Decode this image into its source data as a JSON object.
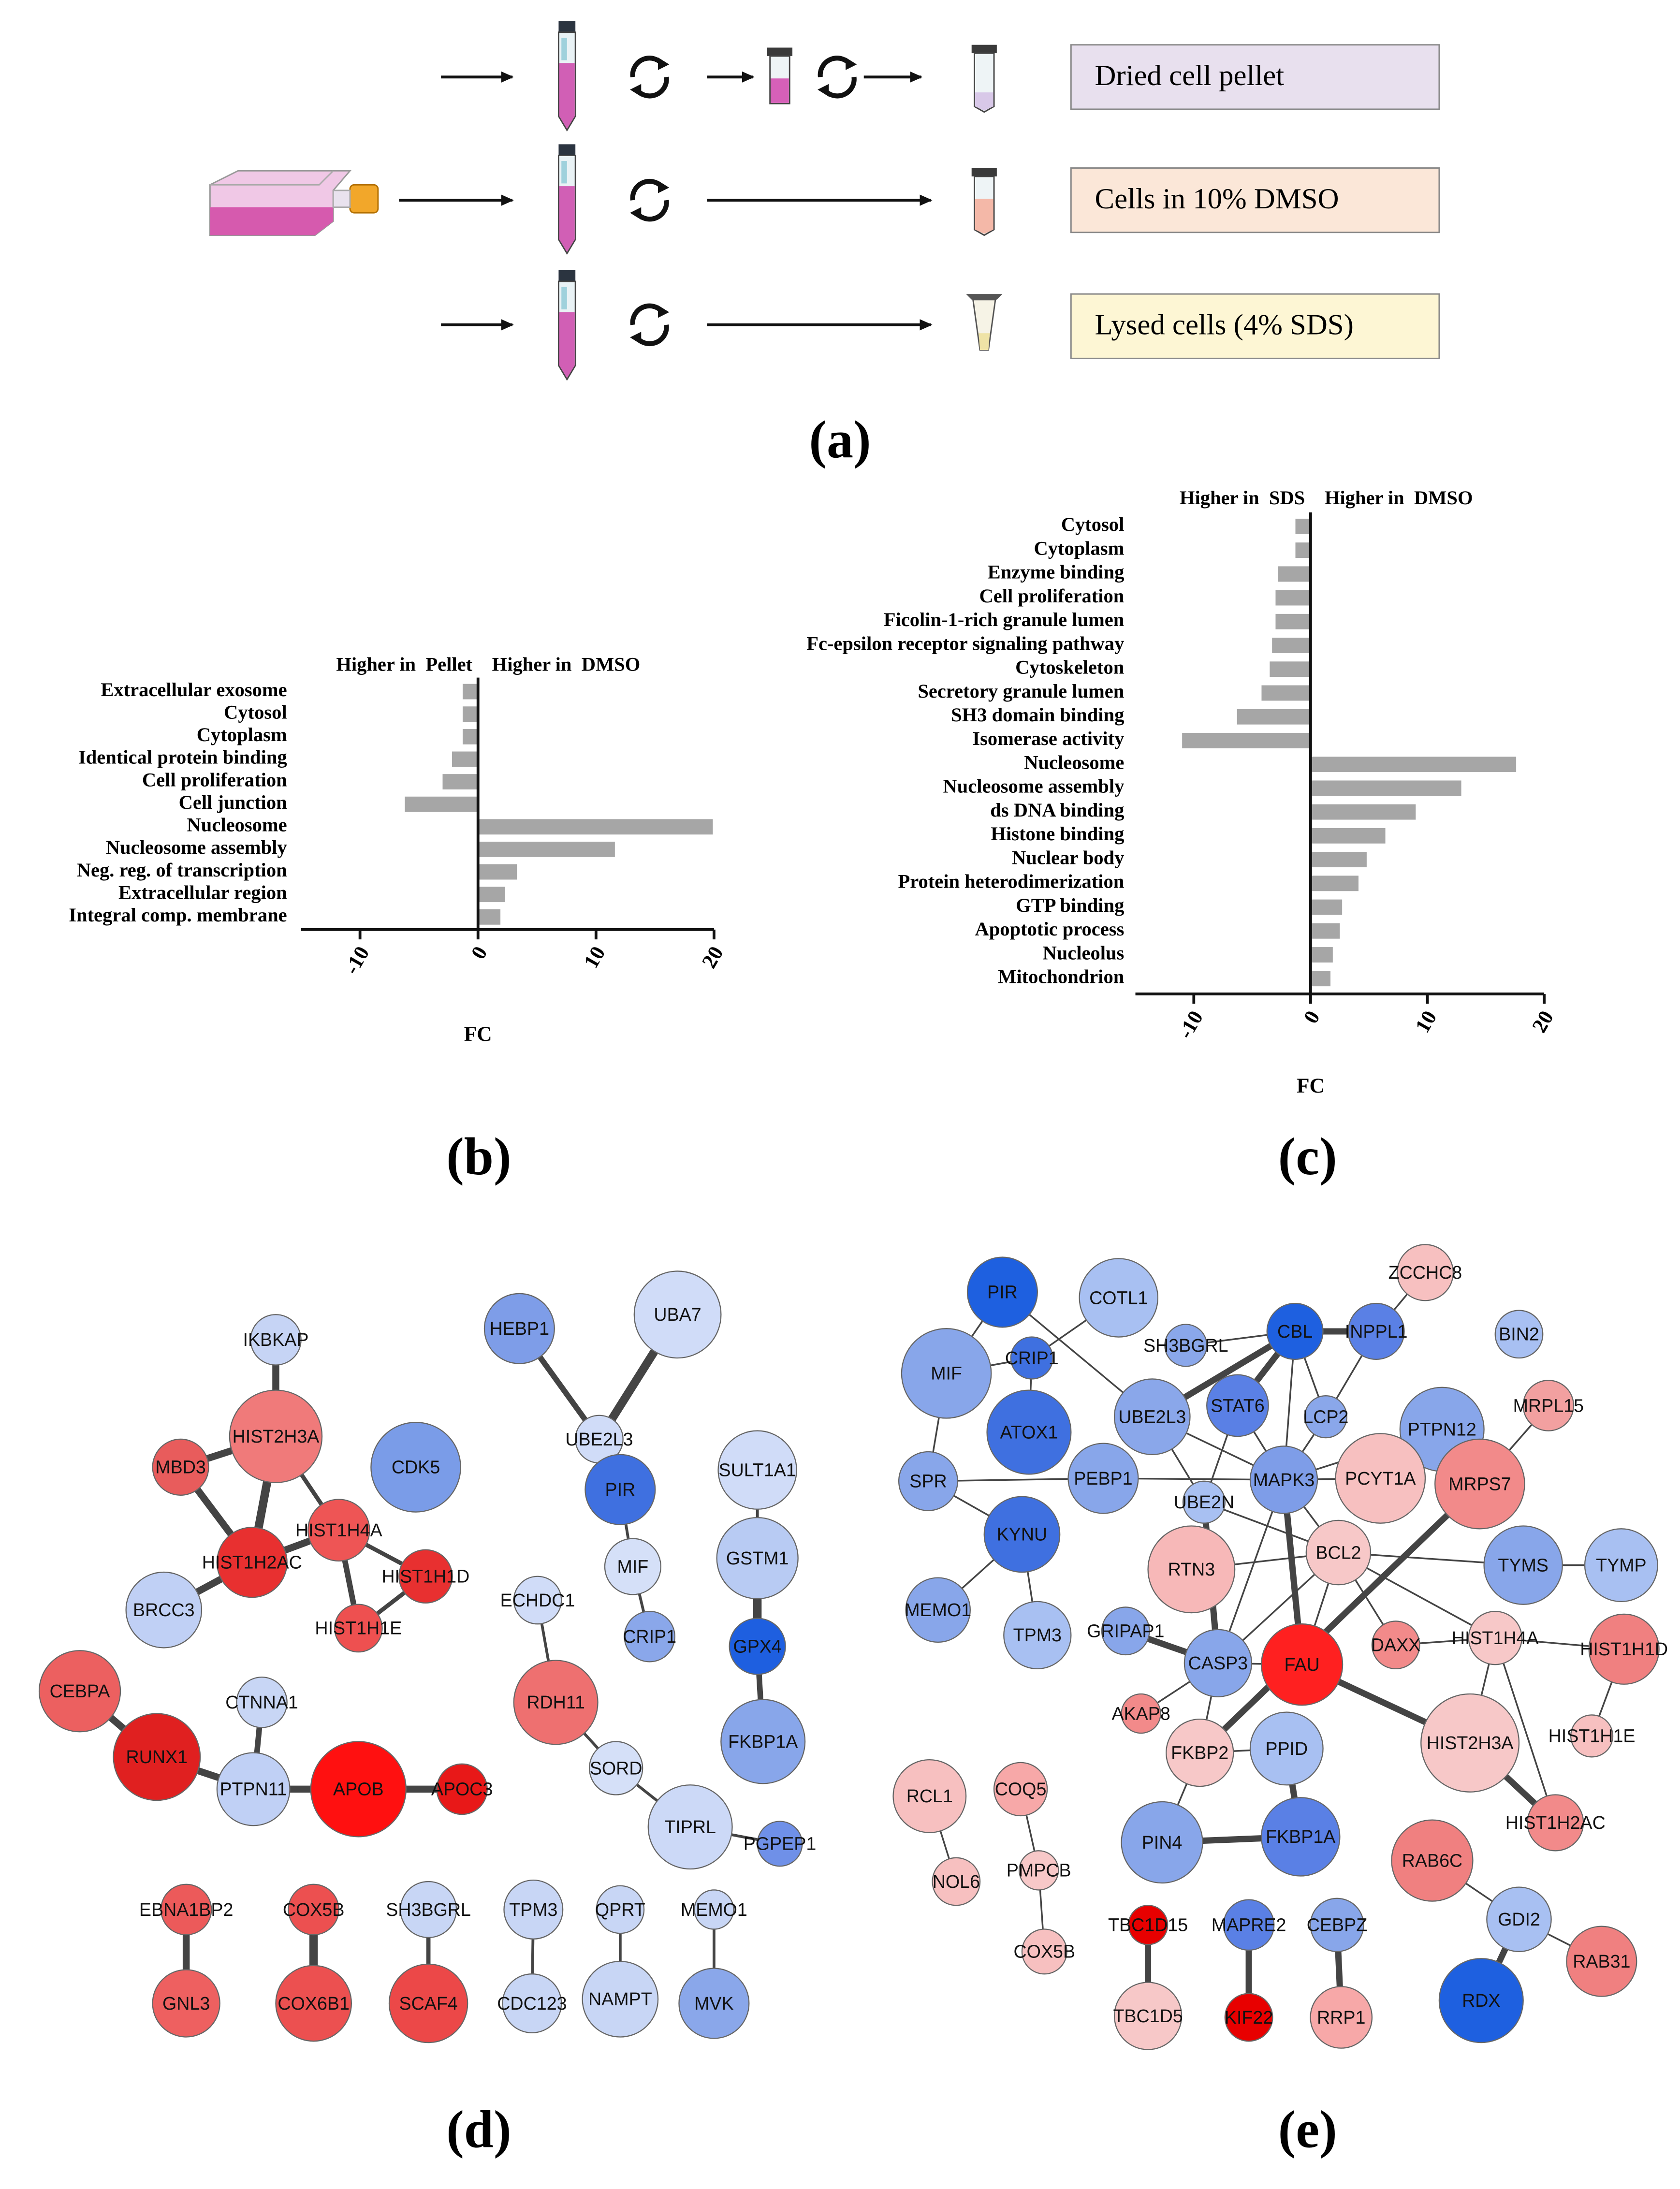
{
  "workflow": {
    "steps": [
      "Dried cell pellet",
      "Cells in 10% DMSO",
      "Lysed cells (4% SDS)"
    ]
  },
  "figure_labels": [
    "(a)",
    "(b)",
    "(c)",
    "(d)",
    "(e)"
  ],
  "chart_data": [
    {
      "type": "bar",
      "orientation": "horizontal",
      "color": "#a6a6a6",
      "left_header": "Higher in  Pellet",
      "right_header": "Higher in  DMSO",
      "xlabel": "FC",
      "categories": [
        "Extracellular exosome",
        "Cytosol",
        "Cytoplasm",
        "Identical protein binding",
        "Cell proliferation",
        "Cell junction",
        "Nucleosome",
        "Nucleosome assembly",
        "Neg. reg. of transcription",
        "Extracellular region",
        "Integral comp. membrane"
      ],
      "values": [
        -1.3,
        -1.3,
        -1.3,
        -2.2,
        -3,
        -6.2,
        19.9,
        11.6,
        3.3,
        2.3,
        1.9
      ],
      "xlim": [
        -15,
        20
      ],
      "xticks": [
        -10,
        0,
        10,
        20
      ]
    },
    {
      "type": "bar",
      "orientation": "horizontal",
      "color": "#a6a6a6",
      "left_header": "Higher in  SDS",
      "right_header": "Higher in  DMSO",
      "xlabel": "FC",
      "categories": [
        "Cytosol",
        "Cytoplasm",
        "Enzyme binding",
        "Cell proliferation",
        "Ficolin-1-rich granule lumen",
        "Fc-epsilon receptor signaling pathway",
        "Cytoskeleton",
        "Secretory granule lumen",
        "SH3 domain binding",
        "Isomerase activity",
        "Nucleosome",
        "Nucleosome assembly",
        "ds DNA binding",
        "Histone binding",
        "Nuclear body",
        "Protein heterodimerization",
        "GTP binding",
        "Apoptotic process",
        "Nucleolus",
        "Mitochondrion"
      ],
      "values": [
        -1.3,
        -1.3,
        -2.8,
        -3,
        -3,
        -3.3,
        -3.5,
        -4.2,
        -6.3,
        -11,
        17.6,
        12.9,
        9,
        6.4,
        4.8,
        4.1,
        2.7,
        2.5,
        1.9,
        1.7
      ],
      "xlim": [
        -15,
        20
      ],
      "xticks": [
        -10,
        0,
        10,
        20
      ]
    }
  ],
  "network_d": {
    "nodes": [
      {
        "label": "IKBKAP",
        "color": "#c6d4f5"
      },
      {
        "label": "HIST2H3A",
        "color": "#f07a7a"
      },
      {
        "label": "MBD3",
        "color": "#e85c5c"
      },
      {
        "label": "CDK5",
        "color": "#7a9ce8"
      },
      {
        "label": "HIST1H4A",
        "color": "#ee5555"
      },
      {
        "label": "HIST1H2AC",
        "color": "#e83030"
      },
      {
        "label": "HIST1H1D",
        "color": "#e83030"
      },
      {
        "label": "BRCC3",
        "color": "#c0d0f5"
      },
      {
        "label": "HIST1H1E",
        "color": "#ee5050"
      },
      {
        "label": "CEBPA",
        "color": "#ec6060"
      },
      {
        "label": "RUNX1",
        "color": "#e02020"
      },
      {
        "label": "CTNNA1",
        "color": "#c8d6f5"
      },
      {
        "label": "PTPN11",
        "color": "#c0d0f5"
      },
      {
        "label": "APOB",
        "color": "#ff1010"
      },
      {
        "label": "APOC3",
        "color": "#e81818"
      },
      {
        "label": "HEBP1",
        "color": "#7e9de8"
      },
      {
        "label": "UBA7",
        "color": "#d0dcf8"
      },
      {
        "label": "UBE2L3",
        "color": "#d0dcf8"
      },
      {
        "label": "PIR",
        "color": "#3f70e0"
      },
      {
        "label": "MIF",
        "color": "#d5e0f8"
      },
      {
        "label": "CRIP1",
        "color": "#8aa7ea"
      },
      {
        "label": "SULT1A1",
        "color": "#d0dcf8"
      },
      {
        "label": "GSTM1",
        "color": "#b8cbf3"
      },
      {
        "label": "GPX4",
        "color": "#1e5fe0"
      },
      {
        "label": "FKBP1A",
        "color": "#88a6ea"
      },
      {
        "label": "ECHDC1",
        "color": "#d0dcf8"
      },
      {
        "label": "RDH11",
        "color": "#ee7070"
      },
      {
        "label": "SORD",
        "color": "#d5e0f8"
      },
      {
        "label": "TIPRL",
        "color": "#ccd9f7"
      },
      {
        "label": "PGPEP1",
        "color": "#6f90e8"
      },
      {
        "label": "EBNA1BP2",
        "color": "#ec5a5a"
      },
      {
        "label": "GNL3",
        "color": "#ee6060"
      },
      {
        "label": "COX5B",
        "color": "#ec5050"
      },
      {
        "label": "COX6B1",
        "color": "#ec5050"
      },
      {
        "label": "SH3BGRL",
        "color": "#c8d6f5"
      },
      {
        "label": "SCAF4",
        "color": "#ec4848"
      },
      {
        "label": "TPM3",
        "color": "#c8d6f5"
      },
      {
        "label": "CDC123",
        "color": "#c8d6f5"
      },
      {
        "label": "QPRT",
        "color": "#c8d6f5"
      },
      {
        "label": "NAMPT",
        "color": "#c8d6f5"
      },
      {
        "label": "MEMO1",
        "color": "#c8d6f5"
      },
      {
        "label": "MVK",
        "color": "#8aa7ea"
      }
    ],
    "edges": [
      [
        0,
        1
      ],
      [
        1,
        2
      ],
      [
        1,
        5
      ],
      [
        1,
        4
      ],
      [
        2,
        5
      ],
      [
        5,
        4
      ],
      [
        5,
        7
      ],
      [
        4,
        6
      ],
      [
        4,
        8
      ],
      [
        8,
        6
      ],
      [
        9,
        10
      ],
      [
        10,
        12
      ],
      [
        11,
        12
      ],
      [
        12,
        13
      ],
      [
        13,
        14
      ],
      [
        15,
        17
      ],
      [
        16,
        17
      ],
      [
        17,
        18
      ],
      [
        18,
        19
      ],
      [
        19,
        20
      ],
      [
        21,
        22
      ],
      [
        22,
        23
      ],
      [
        23,
        24
      ],
      [
        25,
        26
      ],
      [
        26,
        27
      ],
      [
        27,
        28
      ],
      [
        28,
        29
      ],
      [
        30,
        31
      ],
      [
        32,
        33
      ],
      [
        34,
        35
      ],
      [
        36,
        37
      ],
      [
        38,
        39
      ],
      [
        40,
        41
      ]
    ]
  },
  "network_e": {
    "nodes": [
      {
        "label": "PIR",
        "color": "#1e60e0"
      },
      {
        "label": "COTL1",
        "color": "#a8c0f2"
      },
      {
        "label": "ZCCHC8",
        "color": "#f7c0c0"
      },
      {
        "label": "MIF",
        "color": "#88a6ea"
      },
      {
        "label": "CRIP1",
        "color": "#3f70e0"
      },
      {
        "label": "SH3BGRL",
        "color": "#8aa7ea"
      },
      {
        "label": "CBL",
        "color": "#1e60e0"
      },
      {
        "label": "INPPL1",
        "color": "#5a80e5"
      },
      {
        "label": "BIN2",
        "color": "#a8c0f2"
      },
      {
        "label": "ATOX1",
        "color": "#3f70e0"
      },
      {
        "label": "UBE2L3",
        "color": "#8aa7ea"
      },
      {
        "label": "STAT6",
        "color": "#5a80e5"
      },
      {
        "label": "LCP2",
        "color": "#8aa7ea"
      },
      {
        "label": "PTPN12",
        "color": "#88a6ea"
      },
      {
        "label": "MRPL15",
        "color": "#f2a0a0"
      },
      {
        "label": "SPR",
        "color": "#88a6ea"
      },
      {
        "label": "PEBP1",
        "color": "#88a6ea"
      },
      {
        "label": "MAPK3",
        "color": "#7e9de8"
      },
      {
        "label": "PCYT1A",
        "color": "#f7c0c0"
      },
      {
        "label": "MRPS7",
        "color": "#f28a8a"
      },
      {
        "label": "UBE2N",
        "color": "#a8c0f2"
      },
      {
        "label": "KYNU",
        "color": "#3f70e0"
      },
      {
        "label": "RTN3",
        "color": "#f7b8b8"
      },
      {
        "label": "BCL2",
        "color": "#f7c8c8"
      },
      {
        "label": "TYMS",
        "color": "#88a6ea"
      },
      {
        "label": "TYMP",
        "color": "#a8c0f2"
      },
      {
        "label": "MEMO1",
        "color": "#88a6ea"
      },
      {
        "label": "TPM3",
        "color": "#a8c0f2"
      },
      {
        "label": "GRIPAP1",
        "color": "#88a6ea"
      },
      {
        "label": "CASP3",
        "color": "#88a6ea"
      },
      {
        "label": "FAU",
        "color": "#ff2020"
      },
      {
        "label": "DAXX",
        "color": "#f28a8a"
      },
      {
        "label": "HIST1H4A",
        "color": "#f7c8c8"
      },
      {
        "label": "HIST1H1D",
        "color": "#f08080"
      },
      {
        "label": "AKAP8",
        "color": "#f28a8a"
      },
      {
        "label": "FKBP2",
        "color": "#f7c8c8"
      },
      {
        "label": "PPID",
        "color": "#a8c0f2"
      },
      {
        "label": "HIST2H3A",
        "color": "#f7c8c8"
      },
      {
        "label": "HIST1H1E",
        "color": "#f7c0c0"
      },
      {
        "label": "RCL1",
        "color": "#f7c0c0"
      },
      {
        "label": "COQ5",
        "color": "#f7a8a8"
      },
      {
        "label": "PMPCB",
        "color": "#f7c8c8"
      },
      {
        "label": "NOL6",
        "color": "#f7c0c0"
      },
      {
        "label": "COX5B",
        "color": "#f7c0c0"
      },
      {
        "label": "PIN4",
        "color": "#88a6ea"
      },
      {
        "label": "FKBP1A",
        "color": "#5a80e5"
      },
      {
        "label": "HIST1H2AC",
        "color": "#f28a8a"
      },
      {
        "label": "RAB6C",
        "color": "#f08080"
      },
      {
        "label": "GDI2",
        "color": "#a8c0f2"
      },
      {
        "label": "RAB31",
        "color": "#f08080"
      },
      {
        "label": "TBC1D15",
        "color": "#e80000"
      },
      {
        "label": "MAPRE2",
        "color": "#5a80e5"
      },
      {
        "label": "CEBPZ",
        "color": "#88a6ea"
      },
      {
        "label": "TBC1D5",
        "color": "#f7c8c8"
      },
      {
        "label": "KIF22",
        "color": "#e80000"
      },
      {
        "label": "RRP1",
        "color": "#f7a8a8"
      },
      {
        "label": "RDX",
        "color": "#1e60e0"
      }
    ],
    "edges": [
      [
        0,
        3
      ],
      [
        0,
        10
      ],
      [
        1,
        4
      ],
      [
        4,
        3
      ],
      [
        4,
        9
      ],
      [
        3,
        15
      ],
      [
        15,
        16
      ],
      [
        15,
        21
      ],
      [
        21,
        27
      ],
      [
        21,
        26
      ],
      [
        16,
        17
      ],
      [
        10,
        6
      ],
      [
        10,
        20
      ],
      [
        10,
        17
      ],
      [
        5,
        6
      ],
      [
        6,
        7
      ],
      [
        6,
        11
      ],
      [
        6,
        12
      ],
      [
        6,
        17
      ],
      [
        7,
        12
      ],
      [
        2,
        7
      ],
      [
        11,
        17
      ],
      [
        11,
        20
      ],
      [
        17,
        18
      ],
      [
        17,
        23
      ],
      [
        17,
        29
      ],
      [
        17,
        30
      ],
      [
        17,
        13
      ],
      [
        20,
        23
      ],
      [
        20,
        29
      ],
      [
        22,
        23
      ],
      [
        23,
        29
      ],
      [
        23,
        30
      ],
      [
        23,
        31
      ],
      [
        23,
        32
      ],
      [
        23,
        24
      ],
      [
        24,
        25
      ],
      [
        19,
        14
      ],
      [
        19,
        35
      ],
      [
        28,
        29
      ],
      [
        29,
        34
      ],
      [
        29,
        35
      ],
      [
        29,
        30
      ],
      [
        30,
        37
      ],
      [
        31,
        32
      ],
      [
        32,
        37
      ],
      [
        32,
        33
      ],
      [
        32,
        46
      ],
      [
        33,
        38
      ],
      [
        37,
        46
      ],
      [
        35,
        36
      ],
      [
        35,
        44
      ],
      [
        44,
        45
      ],
      [
        36,
        45
      ],
      [
        39,
        42
      ],
      [
        40,
        41
      ],
      [
        41,
        43
      ],
      [
        47,
        48
      ],
      [
        48,
        49
      ],
      [
        48,
        56
      ],
      [
        50,
        53
      ],
      [
        51,
        54
      ],
      [
        52,
        55
      ],
      [
        12,
        17
      ]
    ]
  }
}
